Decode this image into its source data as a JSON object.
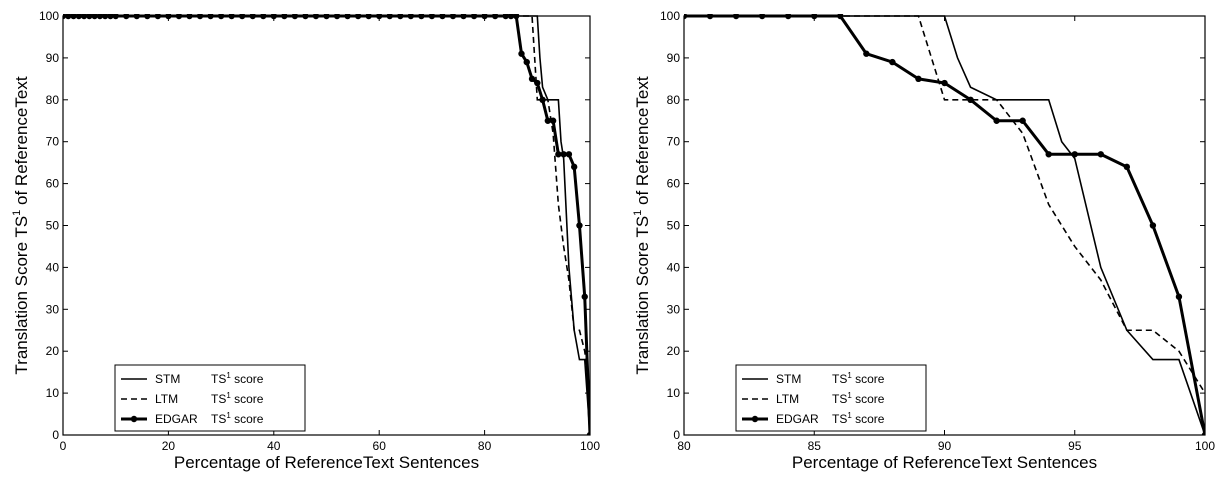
{
  "chart_data": [
    {
      "type": "line",
      "xlabel": "Percentage of ReferenceText Sentences",
      "ylabel_parts": [
        "Translation Score TS",
        "1",
        " of ReferenceText"
      ],
      "xlim": [
        0,
        100
      ],
      "ylim": [
        0,
        100
      ],
      "xticks": [
        0,
        20,
        40,
        60,
        80,
        100
      ],
      "yticks": [
        0,
        10,
        20,
        30,
        40,
        50,
        60,
        70,
        80,
        90,
        100
      ],
      "grid": false,
      "legend_position": "bottom-left",
      "series": [
        {
          "name_parts": [
            "STM",
            "TS",
            "1",
            " score"
          ],
          "style": "solid",
          "x": [
            0,
            90,
            90.5,
            91,
            92,
            93.5,
            94,
            94.5,
            95,
            96,
            97,
            98,
            99,
            100
          ],
          "y": [
            100,
            100,
            90,
            83,
            80,
            80,
            80,
            70,
            66,
            40,
            25,
            18,
            18,
            0
          ]
        },
        {
          "name_parts": [
            "LTM",
            "TS",
            "1",
            " score"
          ],
          "style": "dashed",
          "x": [
            0,
            89,
            90,
            91,
            92,
            93,
            94,
            95,
            96,
            97,
            98,
            99,
            100
          ],
          "y": [
            100,
            100,
            80,
            80,
            80,
            72,
            55,
            45,
            37,
            25,
            25,
            20,
            10
          ]
        },
        {
          "name_parts": [
            "EDGAR",
            "TS",
            "1",
            " score"
          ],
          "style": "thick-markers",
          "x": [
            0,
            1,
            2,
            3,
            4,
            5,
            6,
            7,
            8,
            9,
            10,
            12,
            14,
            16,
            18,
            20,
            22,
            24,
            26,
            28,
            30,
            32,
            34,
            36,
            38,
            40,
            42,
            44,
            46,
            48,
            50,
            52,
            54,
            56,
            58,
            60,
            62,
            64,
            66,
            68,
            70,
            72,
            74,
            76,
            78,
            80,
            82,
            84,
            85,
            86,
            87,
            88,
            89,
            90,
            91,
            92,
            93,
            94,
            95,
            96,
            97,
            98,
            99,
            100
          ],
          "y": [
            100,
            100,
            100,
            100,
            100,
            100,
            100,
            100,
            100,
            100,
            100,
            100,
            100,
            100,
            100,
            100,
            100,
            100,
            100,
            100,
            100,
            100,
            100,
            100,
            100,
            100,
            100,
            100,
            100,
            100,
            100,
            100,
            100,
            100,
            100,
            100,
            100,
            100,
            100,
            100,
            100,
            100,
            100,
            100,
            100,
            100,
            100,
            100,
            100,
            100,
            91,
            89,
            85,
            84,
            80,
            75,
            75,
            67,
            67,
            67,
            64,
            50,
            33,
            0
          ]
        }
      ]
    },
    {
      "type": "line",
      "xlabel": "Percentage of ReferenceText Sentences",
      "ylabel_parts": [
        "Translation Score TS",
        "1",
        " of ReferenceText"
      ],
      "xlim": [
        80,
        100
      ],
      "ylim": [
        0,
        100
      ],
      "xticks": [
        80,
        85,
        90,
        95,
        100
      ],
      "yticks": [
        0,
        10,
        20,
        30,
        40,
        50,
        60,
        70,
        80,
        90,
        100
      ],
      "grid": false,
      "legend_position": "bottom-left",
      "series": [
        {
          "name_parts": [
            "STM",
            "TS",
            "1",
            " score"
          ],
          "style": "solid",
          "x": [
            80,
            90,
            90.5,
            91,
            92,
            93.5,
            94,
            94.5,
            95,
            96,
            97,
            98,
            99,
            100
          ],
          "y": [
            100,
            100,
            90,
            83,
            80,
            80,
            80,
            70,
            66,
            40,
            25,
            18,
            18,
            0
          ]
        },
        {
          "name_parts": [
            "LTM",
            "TS",
            "1",
            " score"
          ],
          "style": "dashed",
          "x": [
            80,
            89,
            90,
            91,
            92,
            93,
            94,
            95,
            96,
            97,
            98,
            99,
            100
          ],
          "y": [
            100,
            100,
            80,
            80,
            80,
            72,
            55,
            45,
            37,
            25,
            25,
            20,
            10
          ]
        },
        {
          "name_parts": [
            "EDGAR",
            "TS",
            "1",
            " score"
          ],
          "style": "thick-markers",
          "x": [
            80,
            81,
            82,
            83,
            84,
            85,
            86,
            87,
            88,
            89,
            90,
            91,
            92,
            93,
            94,
            95,
            96,
            97,
            98,
            99,
            100
          ],
          "y": [
            100,
            100,
            100,
            100,
            100,
            100,
            100,
            91,
            89,
            85,
            84,
            80,
            75,
            75,
            67,
            67,
            67,
            64,
            50,
            33,
            0
          ]
        }
      ]
    }
  ]
}
